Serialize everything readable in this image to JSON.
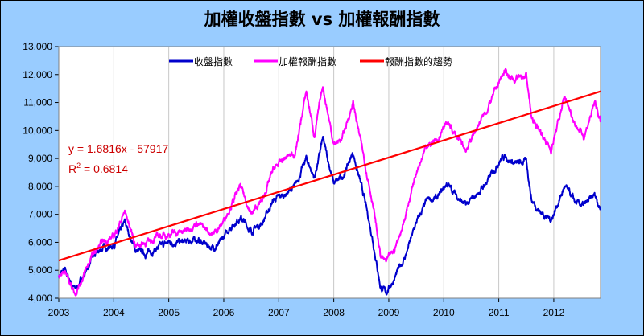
{
  "chart_data": {
    "type": "line",
    "title": "加權收盤指數 vs 加權報酬指數",
    "xlabel": "",
    "ylabel": "",
    "xlim": [
      2003,
      2012.85
    ],
    "ylim": [
      4000,
      13000
    ],
    "x_ticks": [
      "2003",
      "2004",
      "2005",
      "2006",
      "2007",
      "2008",
      "2009",
      "2010",
      "2011",
      "2012"
    ],
    "y_ticks": [
      "4,000",
      "5,000",
      "6,000",
      "7,000",
      "8,000",
      "9,000",
      "10,000",
      "11,000",
      "12,000",
      "13,000"
    ],
    "grid": "vertical",
    "legend_position": "top-center",
    "series": [
      {
        "name": "收盤指數",
        "color": "#0000cc",
        "x": [
          2003.0,
          2003.1,
          2003.3,
          2003.45,
          2003.6,
          2003.8,
          2004.0,
          2004.2,
          2004.4,
          2004.6,
          2004.8,
          2005.0,
          2005.3,
          2005.5,
          2005.8,
          2005.95,
          2006.1,
          2006.3,
          2006.5,
          2006.7,
          2006.9,
          2007.1,
          2007.3,
          2007.5,
          2007.65,
          2007.8,
          2008.0,
          2008.15,
          2008.35,
          2008.55,
          2008.7,
          2008.85,
          2008.95,
          2009.1,
          2009.3,
          2009.5,
          2009.7,
          2009.9,
          2010.05,
          2010.4,
          2010.6,
          2010.8,
          2011.0,
          2011.1,
          2011.3,
          2011.5,
          2011.6,
          2011.75,
          2011.95,
          2012.2,
          2012.4,
          2012.55,
          2012.75,
          2012.85
        ],
        "values": [
          4800,
          5000,
          4300,
          4800,
          5400,
          5800,
          5900,
          6700,
          5700,
          5600,
          5800,
          6000,
          6000,
          6100,
          5800,
          6000,
          6500,
          6900,
          6400,
          6700,
          7500,
          7700,
          8000,
          9000,
          8300,
          9700,
          8100,
          8300,
          9200,
          7600,
          6200,
          4400,
          4200,
          4700,
          5500,
          6700,
          7500,
          7600,
          8100,
          7300,
          7700,
          8200,
          8900,
          9100,
          8800,
          8900,
          7500,
          7100,
          6800,
          8000,
          7400,
          7300,
          7700,
          7200
        ]
      },
      {
        "name": "加權報酬指數",
        "color": "#ff00ff",
        "x": [
          2003.0,
          2003.1,
          2003.3,
          2003.45,
          2003.6,
          2003.8,
          2004.0,
          2004.2,
          2004.4,
          2004.6,
          2004.8,
          2005.0,
          2005.3,
          2005.5,
          2005.8,
          2005.95,
          2006.1,
          2006.3,
          2006.5,
          2006.7,
          2006.9,
          2007.1,
          2007.3,
          2007.5,
          2007.65,
          2007.8,
          2008.0,
          2008.15,
          2008.35,
          2008.55,
          2008.7,
          2008.85,
          2008.95,
          2009.1,
          2009.3,
          2009.5,
          2009.7,
          2009.9,
          2010.05,
          2010.4,
          2010.6,
          2010.8,
          2011.0,
          2011.1,
          2011.3,
          2011.5,
          2011.6,
          2011.75,
          2011.95,
          2012.2,
          2012.4,
          2012.55,
          2012.75,
          2012.85
        ],
        "values": [
          4800,
          5000,
          4200,
          4800,
          5500,
          6000,
          6200,
          7100,
          5900,
          6000,
          6200,
          6300,
          6400,
          6700,
          6300,
          6600,
          7200,
          8000,
          7000,
          7500,
          8600,
          9000,
          9200,
          11400,
          9800,
          11600,
          9500,
          9700,
          11000,
          9000,
          7500,
          5500,
          5300,
          5700,
          6900,
          8600,
          9500,
          9600,
          10300,
          9300,
          10100,
          10800,
          11700,
          12100,
          11800,
          12000,
          10400,
          10000,
          9300,
          11200,
          10200,
          9800,
          11000,
          10300
        ]
      },
      {
        "name": "報酬指數的趨勢",
        "color": "#ff0000",
        "type": "linear-trend",
        "x": [
          2003.0,
          2012.85
        ],
        "values": [
          5348,
          11398
        ]
      }
    ],
    "annotations": {
      "equation": "y = 1.6816x - 57917",
      "r2_prefix": "R",
      "r2_sup": "2",
      "r2_value": " = 0.6814"
    }
  }
}
